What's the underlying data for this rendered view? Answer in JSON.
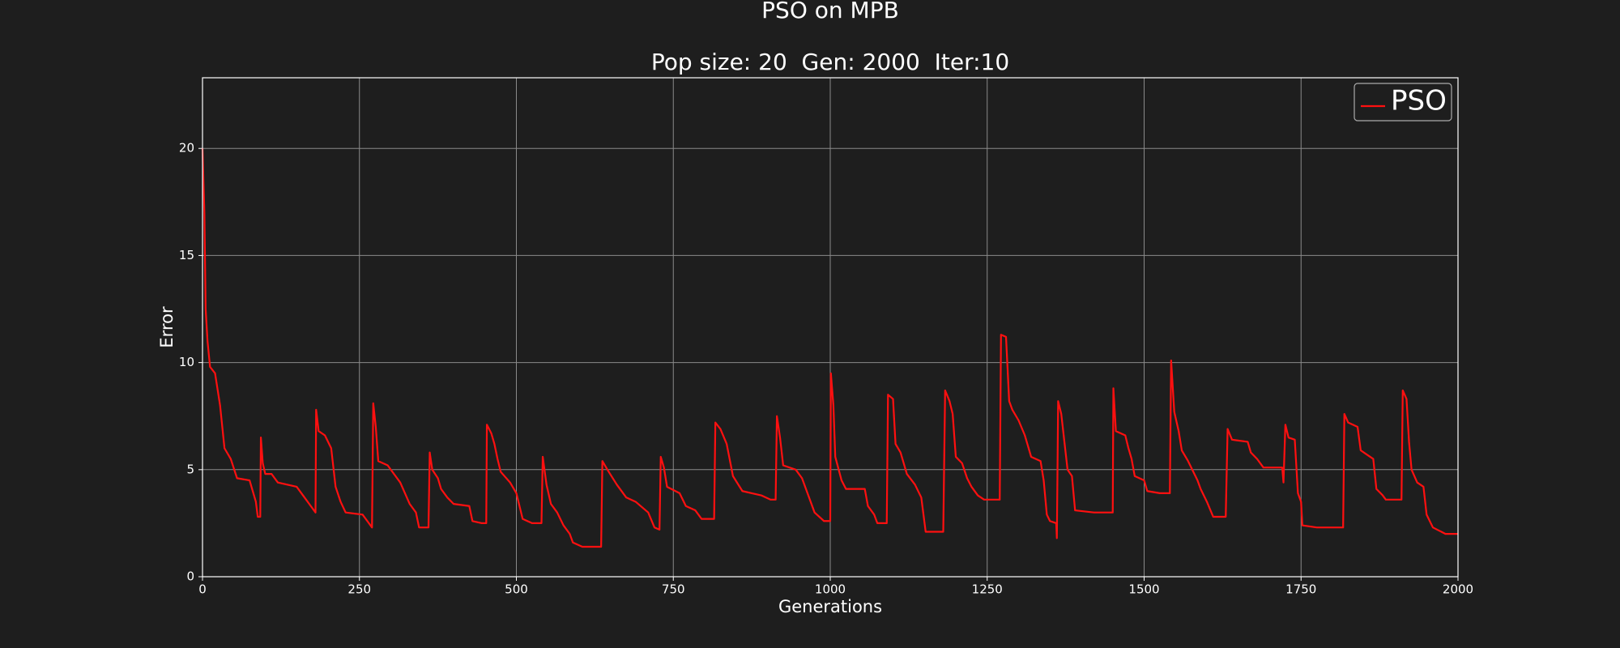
{
  "chart_data": {
    "type": "line",
    "title": "PSO on MPB",
    "subtitle": "Pop size: 20  Gen: 2000  Iter:10",
    "xlabel": "Generations",
    "ylabel": "Error",
    "xlim": [
      0,
      2000
    ],
    "ylim": [
      0,
      23.3
    ],
    "xticks": [
      0,
      250,
      500,
      750,
      1000,
      1250,
      1500,
      1750,
      2000
    ],
    "yticks": [
      0,
      5,
      10,
      15,
      20
    ],
    "grid": true,
    "legend": "upper right",
    "x": [
      0,
      3,
      5,
      8,
      12,
      20,
      28,
      35,
      45,
      55,
      75,
      85,
      88,
      92,
      93,
      96,
      100,
      110,
      120,
      150,
      165,
      175,
      180,
      181,
      185,
      195,
      205,
      212,
      220,
      228,
      255,
      265,
      270,
      272,
      276,
      280,
      295,
      305,
      315,
      330,
      340,
      345,
      360,
      362,
      366,
      375,
      380,
      390,
      400,
      425,
      430,
      445,
      452,
      453,
      460,
      465,
      470,
      475,
      490,
      500,
      510,
      525,
      540,
      542,
      548,
      555,
      565,
      575,
      585,
      590,
      605,
      635,
      637,
      645,
      660,
      675,
      690,
      710,
      720,
      728,
      730,
      735,
      740,
      760,
      770,
      785,
      795,
      815,
      817,
      825,
      835,
      845,
      860,
      875,
      890,
      905,
      913,
      915,
      920,
      925,
      945,
      955,
      965,
      975,
      990,
      1000,
      1001,
      1005,
      1008,
      1018,
      1025,
      1055,
      1060,
      1070,
      1075,
      1090,
      1092,
      1100,
      1104,
      1112,
      1122,
      1135,
      1145,
      1152,
      1180,
      1183,
      1190,
      1195,
      1200,
      1210,
      1218,
      1225,
      1235,
      1245,
      1270,
      1272,
      1280,
      1285,
      1290,
      1300,
      1310,
      1320,
      1335,
      1340,
      1345,
      1350,
      1360,
      1361,
      1363,
      1368,
      1378,
      1385,
      1390,
      1420,
      1450,
      1451,
      1455,
      1470,
      1475,
      1480,
      1485,
      1500,
      1505,
      1525,
      1541,
      1543,
      1548,
      1555,
      1560,
      1570,
      1585,
      1590,
      1600,
      1610,
      1630,
      1633,
      1640,
      1665,
      1670,
      1680,
      1690,
      1720,
      1722,
      1725,
      1730,
      1740,
      1745,
      1750,
      1752,
      1775,
      1790,
      1817,
      1819,
      1825,
      1840,
      1845,
      1855,
      1865,
      1870,
      1880,
      1885,
      1910,
      1912,
      1918,
      1922,
      1926,
      1935,
      1945,
      1950,
      1960,
      1980,
      2000
    ],
    "series": [
      {
        "name": "PSO",
        "color": "#ff1010",
        "values": [
          20.0,
          17,
          12.5,
          11,
          9.8,
          9.5,
          8,
          6,
          5.5,
          4.6,
          4.5,
          3.5,
          2.8,
          2.8,
          6.5,
          5.3,
          4.8,
          4.8,
          4.4,
          4.2,
          3.6,
          3.2,
          3.0,
          7.8,
          6.8,
          6.6,
          6.0,
          4.2,
          3.5,
          3.0,
          2.9,
          2.5,
          2.3,
          8.1,
          7.0,
          5.4,
          5.2,
          4.8,
          4.4,
          3.4,
          3.0,
          2.3,
          2.3,
          5.8,
          5.0,
          4.6,
          4.1,
          3.7,
          3.4,
          3.3,
          2.6,
          2.5,
          2.5,
          7.1,
          6.7,
          6.2,
          5.5,
          4.9,
          4.4,
          3.9,
          2.7,
          2.5,
          2.5,
          5.6,
          4.3,
          3.4,
          3.0,
          2.4,
          2.0,
          1.6,
          1.4,
          1.4,
          5.4,
          5.0,
          4.3,
          3.7,
          3.5,
          3.0,
          2.3,
          2.2,
          5.6,
          5.1,
          4.2,
          3.9,
          3.3,
          3.1,
          2.7,
          2.7,
          7.2,
          6.9,
          6.2,
          4.7,
          4.0,
          3.9,
          3.8,
          3.6,
          3.6,
          7.5,
          6.5,
          5.2,
          5.0,
          4.6,
          3.8,
          3.0,
          2.6,
          2.6,
          9.5,
          8.0,
          5.6,
          4.5,
          4.1,
          4.1,
          3.3,
          2.9,
          2.5,
          2.5,
          8.5,
          8.3,
          6.2,
          5.8,
          4.8,
          4.3,
          3.7,
          2.1,
          2.1,
          8.7,
          8.2,
          7.6,
          5.6,
          5.3,
          4.6,
          4.2,
          3.8,
          3.6,
          3.6,
          11.3,
          11.2,
          8.2,
          7.8,
          7.3,
          6.6,
          5.6,
          5.4,
          4.5,
          2.9,
          2.6,
          2.5,
          1.8,
          8.2,
          7.6,
          5.0,
          4.7,
          3.1,
          3.0,
          3.0,
          8.8,
          6.8,
          6.6,
          6.0,
          5.5,
          4.7,
          4.5,
          4.0,
          3.9,
          3.9,
          10.1,
          7.7,
          6.8,
          5.9,
          5.4,
          4.5,
          4.1,
          3.5,
          2.8,
          2.8,
          6.9,
          6.4,
          6.3,
          5.8,
          5.5,
          5.1,
          5.1,
          4.4,
          7.1,
          6.5,
          6.4,
          3.9,
          3.5,
          2.4,
          2.3,
          2.3,
          2.3,
          7.6,
          7.2,
          7.0,
          5.9,
          5.7,
          5.5,
          4.1,
          3.8,
          3.6,
          3.6,
          8.7,
          8.3,
          6.3,
          5.0,
          4.4,
          4.2,
          2.9,
          2.3,
          2.0,
          2.0
        ]
      }
    ]
  }
}
